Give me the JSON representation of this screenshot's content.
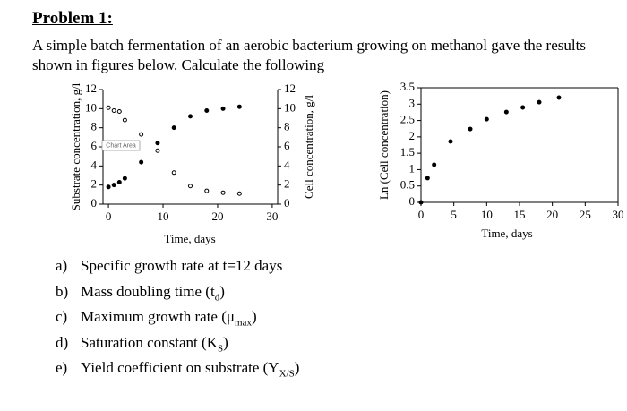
{
  "heading": "Problem 1:",
  "intro": "A simple batch fermentation of an aerobic bacterium growing on methanol gave the results shown in figures below. Calculate the following",
  "questions": [
    {
      "label": "a)",
      "parts": [
        "Specific growth rate at t=12 days"
      ]
    },
    {
      "label": "b)",
      "parts": [
        "Mass doubling time (t",
        "d",
        ")"
      ]
    },
    {
      "label": "c)",
      "parts": [
        "Maximum growth rate (μ",
        "max",
        ")"
      ]
    },
    {
      "label": "d)",
      "parts": [
        "Saturation constant (K",
        "S",
        ")"
      ]
    },
    {
      "label": "e)",
      "parts": [
        "Yield coefficient on substrate (Y",
        "X/S",
        ")"
      ]
    }
  ],
  "chart_data": [
    {
      "type": "scatter",
      "xlabel": "Time, days",
      "ylabel": "Substrate concentration, g/l",
      "y2label": "Cell concentration, g/l",
      "tooltip": "Chart Area",
      "x": [
        0,
        1,
        2,
        3,
        6,
        9,
        12,
        15,
        18,
        21,
        24
      ],
      "xlim": [
        -1,
        31
      ],
      "xticks": [
        0,
        10,
        20,
        30
      ],
      "ylim": [
        0,
        12
      ],
      "yticks": [
        0,
        2,
        4,
        6,
        8,
        10,
        12
      ],
      "y2lim": [
        0,
        12
      ],
      "y2ticks": [
        0,
        2,
        4,
        6,
        8,
        10,
        12
      ],
      "series": [
        {
          "marker": "open",
          "color": "#000000",
          "values": [
            10.1,
            9.8,
            9.7,
            8.8,
            7.3,
            5.6,
            3.3,
            1.9,
            1.4,
            1.2,
            1.1
          ]
        },
        {
          "marker": "filled",
          "color": "#000000",
          "axis": "y2",
          "values": [
            1.8,
            2.0,
            2.3,
            2.7,
            4.4,
            6.4,
            8.0,
            9.2,
            9.8,
            10.0,
            10.2
          ]
        }
      ]
    },
    {
      "type": "scatter",
      "xlabel": "Time, days",
      "ylabel": "Ln (Cell concentration)",
      "x": [
        0,
        1,
        2,
        4.5,
        7.5,
        10,
        13,
        15.5,
        18,
        21
      ],
      "xlim": [
        0,
        30
      ],
      "xticks": [
        0,
        5,
        10,
        15,
        20,
        25,
        30
      ],
      "ylim": [
        0,
        3.5
      ],
      "yticks": [
        0,
        0.5,
        1,
        1.5,
        2,
        2.5,
        3,
        3.5
      ],
      "series": [
        {
          "marker": "filled",
          "color": "#000000",
          "values": [
            0,
            0.74,
            1.15,
            1.86,
            2.24,
            2.54,
            2.76,
            2.9,
            3.06,
            3.2
          ]
        }
      ]
    }
  ]
}
